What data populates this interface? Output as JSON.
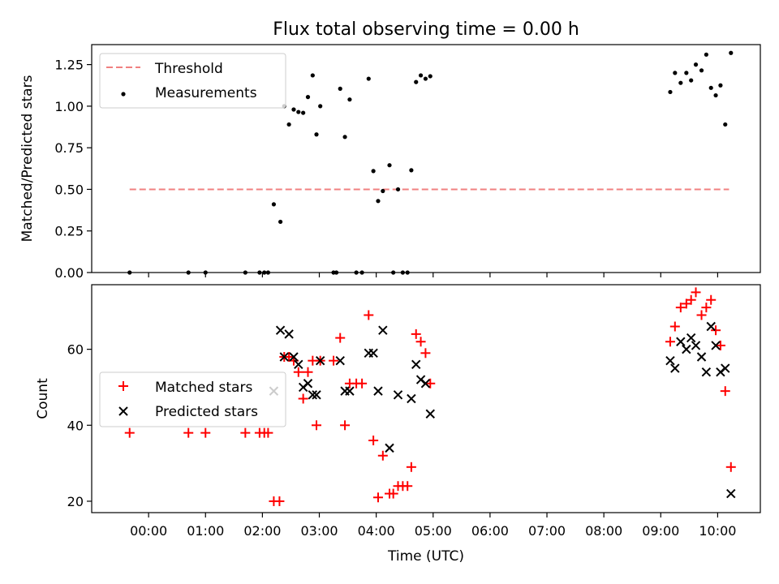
{
  "chart_data": {
    "title": "Flux total observing time = 0.00 h",
    "xlabel": "Time (UTC)",
    "x_ticks": [
      "00:00",
      "01:00",
      "02:00",
      "03:00",
      "04:00",
      "05:00",
      "06:00",
      "07:00",
      "08:00",
      "09:00",
      "10:00"
    ],
    "x_range": [
      "23:00",
      "10:45"
    ],
    "panels": [
      {
        "type": "scatter",
        "ylabel": "Matched/Predicted stars",
        "ylim": [
          0,
          1.37
        ],
        "y_ticks": [
          "0.00",
          "0.25",
          "0.50",
          "0.75",
          "1.00",
          "1.25"
        ],
        "legend": {
          "placement": "upper-left",
          "entries": [
            "Threshold",
            "Measurements"
          ]
        },
        "threshold": {
          "name": "Threshold",
          "value": 0.5,
          "x_start": "23:40",
          "x_end": "10:12",
          "color": "#f08080"
        },
        "measurements": {
          "name": "Measurements",
          "color": "#000000",
          "points": [
            [
              "23:40",
              0.0
            ],
            [
              "00:42",
              0.0
            ],
            [
              "01:00",
              0.0
            ],
            [
              "01:42",
              0.0
            ],
            [
              "01:57",
              0.0
            ],
            [
              "02:02",
              0.0
            ],
            [
              "02:06",
              0.0
            ],
            [
              "02:12",
              0.41
            ],
            [
              "02:19",
              0.305
            ],
            [
              "02:23",
              1.0
            ],
            [
              "02:28",
              0.89
            ],
            [
              "02:33",
              0.98
            ],
            [
              "02:38",
              0.965
            ],
            [
              "02:43",
              0.96
            ],
            [
              "02:48",
              1.055
            ],
            [
              "02:53",
              1.185
            ],
            [
              "02:57",
              0.83
            ],
            [
              "03:01",
              1.0
            ],
            [
              "03:15",
              0.0
            ],
            [
              "03:18",
              0.0
            ],
            [
              "03:22",
              1.105
            ],
            [
              "03:27",
              0.815
            ],
            [
              "03:32",
              1.04
            ],
            [
              "03:39",
              0.0
            ],
            [
              "03:45",
              0.0
            ],
            [
              "03:52",
              1.165
            ],
            [
              "03:57",
              0.61
            ],
            [
              "04:02",
              0.43
            ],
            [
              "04:07",
              0.49
            ],
            [
              "04:14",
              0.645
            ],
            [
              "04:18",
              0.0
            ],
            [
              "04:23",
              0.5
            ],
            [
              "04:28",
              0.0
            ],
            [
              "04:33",
              0.0
            ],
            [
              "04:37",
              0.615
            ],
            [
              "04:42",
              1.145
            ],
            [
              "04:47",
              1.185
            ],
            [
              "04:52",
              1.165
            ],
            [
              "04:57",
              1.18
            ],
            [
              "09:10",
              1.085
            ],
            [
              "09:15",
              1.2
            ],
            [
              "09:21",
              1.14
            ],
            [
              "09:27",
              1.2
            ],
            [
              "09:32",
              1.155
            ],
            [
              "09:37",
              1.25
            ],
            [
              "09:43",
              1.215
            ],
            [
              "09:48",
              1.31
            ],
            [
              "09:53",
              1.11
            ],
            [
              "09:58",
              1.065
            ],
            [
              "10:03",
              1.125
            ],
            [
              "10:08",
              0.89
            ],
            [
              "10:14",
              1.32
            ]
          ]
        }
      },
      {
        "type": "scatter",
        "ylabel": "Count",
        "ylim": [
          17,
          77
        ],
        "y_ticks": [
          "20",
          "40",
          "60"
        ],
        "legend": {
          "placement": "center-left",
          "entries": [
            "Matched stars",
            "Predicted stars"
          ]
        },
        "series": [
          {
            "name": "Matched stars",
            "marker": "plus",
            "color": "#ff0000",
            "points": [
              [
                "23:40",
                38
              ],
              [
                "00:42",
                38
              ],
              [
                "01:00",
                38
              ],
              [
                "01:42",
                38
              ],
              [
                "01:57",
                38
              ],
              [
                "02:02",
                38
              ],
              [
                "02:06",
                38
              ],
              [
                "02:12",
                20
              ],
              [
                "02:18",
                20
              ],
              [
                "02:23",
                58
              ],
              [
                "02:28",
                58
              ],
              [
                "02:33",
                57
              ],
              [
                "02:38",
                54
              ],
              [
                "02:43",
                47
              ],
              [
                "02:48",
                54
              ],
              [
                "02:53",
                57
              ],
              [
                "02:57",
                40
              ],
              [
                "03:01",
                57
              ],
              [
                "03:15",
                57
              ],
              [
                "03:22",
                63
              ],
              [
                "03:27",
                40
              ],
              [
                "03:32",
                51
              ],
              [
                "03:39",
                51
              ],
              [
                "03:45",
                51
              ],
              [
                "03:52",
                69
              ],
              [
                "03:57",
                36
              ],
              [
                "04:02",
                21
              ],
              [
                "04:07",
                32
              ],
              [
                "04:14",
                22
              ],
              [
                "04:18",
                22
              ],
              [
                "04:23",
                24
              ],
              [
                "04:28",
                24
              ],
              [
                "04:33",
                24
              ],
              [
                "04:37",
                29
              ],
              [
                "04:42",
                64
              ],
              [
                "04:47",
                62
              ],
              [
                "04:52",
                59
              ],
              [
                "04:57",
                51
              ],
              [
                "09:10",
                62
              ],
              [
                "09:15",
                66
              ],
              [
                "09:21",
                71
              ],
              [
                "09:27",
                72
              ],
              [
                "09:32",
                73
              ],
              [
                "09:37",
                75
              ],
              [
                "09:43",
                69
              ],
              [
                "09:48",
                71
              ],
              [
                "09:53",
                73
              ],
              [
                "09:58",
                65
              ],
              [
                "10:03",
                61
              ],
              [
                "10:08",
                49
              ],
              [
                "10:14",
                29
              ]
            ]
          },
          {
            "name": "Predicted stars",
            "marker": "x",
            "color": "#000000",
            "points": [
              [
                "02:12",
                49
              ],
              [
                "02:19",
                65
              ],
              [
                "02:23",
                58
              ],
              [
                "02:28",
                64
              ],
              [
                "02:33",
                58
              ],
              [
                "02:38",
                56
              ],
              [
                "02:43",
                50
              ],
              [
                "02:48",
                51
              ],
              [
                "02:53",
                48
              ],
              [
                "02:57",
                48
              ],
              [
                "03:01",
                57
              ],
              [
                "03:22",
                57
              ],
              [
                "03:27",
                49
              ],
              [
                "03:32",
                49
              ],
              [
                "03:52",
                59
              ],
              [
                "03:57",
                59
              ],
              [
                "04:02",
                49
              ],
              [
                "04:07",
                65
              ],
              [
                "04:14",
                34
              ],
              [
                "04:23",
                48
              ],
              [
                "04:37",
                47
              ],
              [
                "04:42",
                56
              ],
              [
                "04:47",
                52
              ],
              [
                "04:52",
                51
              ],
              [
                "04:57",
                43
              ],
              [
                "09:10",
                57
              ],
              [
                "09:15",
                55
              ],
              [
                "09:21",
                62
              ],
              [
                "09:27",
                60
              ],
              [
                "09:32",
                63
              ],
              [
                "09:37",
                61
              ],
              [
                "09:43",
                58
              ],
              [
                "09:48",
                54
              ],
              [
                "09:53",
                66
              ],
              [
                "09:58",
                61
              ],
              [
                "10:03",
                54
              ],
              [
                "10:08",
                55
              ],
              [
                "10:14",
                22
              ]
            ]
          }
        ]
      }
    ]
  }
}
